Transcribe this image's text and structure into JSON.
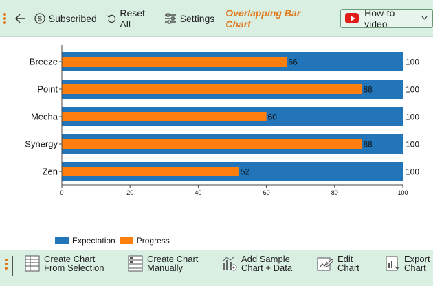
{
  "toolbar": {
    "subscribed_label": "Subscribed",
    "reset_label": "Reset All",
    "settings_label": "Settings",
    "title": "Overlapping Bar Chart",
    "howto_label": "How-to video"
  },
  "chart_data": {
    "type": "bar",
    "orientation": "horizontal",
    "categories": [
      "Breeze",
      "Point",
      "Mecha",
      "Synergy",
      "Zen"
    ],
    "series": [
      {
        "name": "Expectation",
        "values": [
          100,
          100,
          100,
          100,
          100
        ],
        "color": "#2275b9"
      },
      {
        "name": "Progress",
        "values": [
          66,
          88,
          60,
          88,
          52
        ],
        "color": "#ff7f0e"
      }
    ],
    "xlim": [
      0,
      100
    ],
    "xticks": [
      0,
      20,
      40,
      60,
      80,
      100
    ],
    "grid": false,
    "legend_position": "bottom-left"
  },
  "legend": {
    "items": [
      {
        "label": "Expectation",
        "color": "#2275b9"
      },
      {
        "label": "Progress",
        "color": "#ff7f0e"
      }
    ]
  },
  "bottombar": {
    "create_selection": [
      "Create Chart",
      "From Selection"
    ],
    "create_manual": [
      "Create Chart",
      "Manually"
    ],
    "add_sample": [
      "Add Sample",
      "Chart + Data"
    ],
    "edit": [
      "Edit",
      "Chart"
    ],
    "export": [
      "Export",
      "Chart"
    ]
  },
  "colors": {
    "accent": "#e07a1f",
    "toolbar_bg": "#d9efe2"
  }
}
